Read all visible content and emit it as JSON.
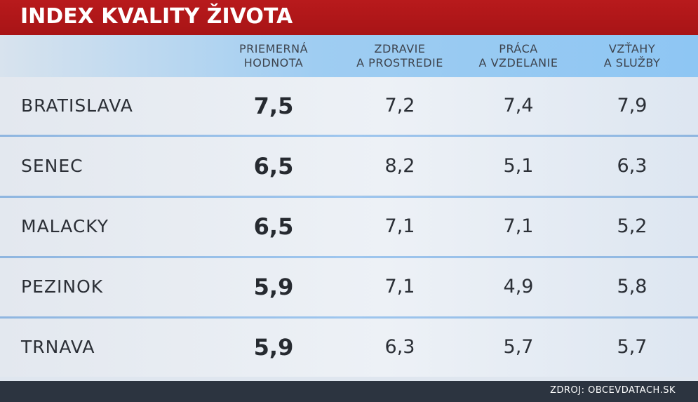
{
  "title": "INDEX KVALITY ŽIVOTA",
  "columns": [
    {
      "line1": "PRIEMERNÁ",
      "line2": "HODNOTA"
    },
    {
      "line1": "ZDRAVIE",
      "line2": "A PROSTREDIE"
    },
    {
      "line1": "PRÁCA",
      "line2": "A VZDELANIE"
    },
    {
      "line1": "VZŤAHY",
      "line2": "A SLUŽBY"
    }
  ],
  "rows": [
    {
      "city": "BRATISLAVA",
      "values": [
        "7,5",
        "7,2",
        "7,4",
        "7,9"
      ]
    },
    {
      "city": "SENEC",
      "values": [
        "6,5",
        "8,2",
        "5,1",
        "6,3"
      ]
    },
    {
      "city": "MALACKY",
      "values": [
        "6,5",
        "7,1",
        "7,1",
        "5,2"
      ]
    },
    {
      "city": "PEZINOK",
      "values": [
        "5,9",
        "7,1",
        "4,9",
        "5,8"
      ]
    },
    {
      "city": "TRNAVA",
      "values": [
        "5,9",
        "6,3",
        "5,7",
        "5,7"
      ]
    }
  ],
  "source": "ZDROJ: OBCEVDATACH.SK",
  "colors": {
    "title_bar": "#b01719",
    "header_band": "#8ec6f3",
    "footer": "#2c3440"
  }
}
